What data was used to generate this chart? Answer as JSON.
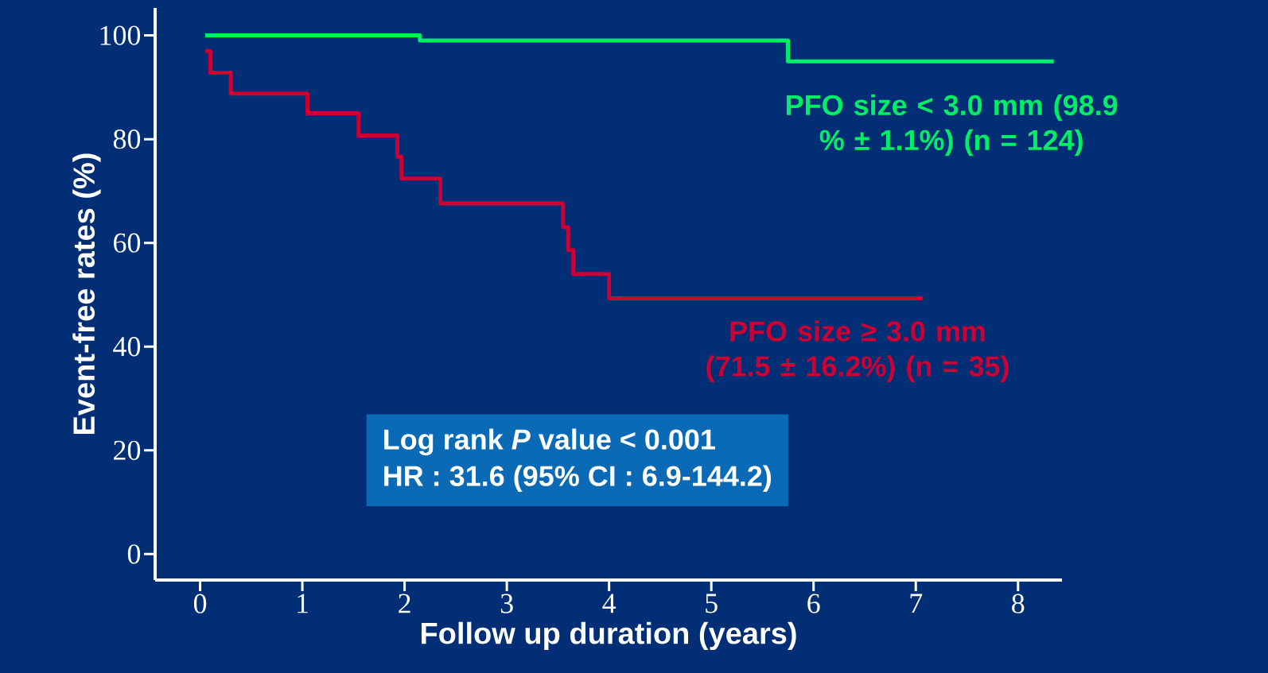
{
  "chart_data": {
    "type": "step",
    "xlabel": "Follow up duration (years)",
    "ylabel": "Event-free rates (%)",
    "xlim": [
      -0.44,
      8.43
    ],
    "ylim": [
      -5,
      105.3
    ],
    "xticks": [
      0,
      1,
      2,
      3,
      4,
      5,
      6,
      7,
      8
    ],
    "yticks": [
      0,
      20,
      40,
      60,
      80,
      100
    ],
    "grid": false,
    "legend": false,
    "series": [
      {
        "name": "PFO size < 3.0 mm (98.9 % ± 1.1%) (n = 124)",
        "color": "#00ee66",
        "x": [
          0.05,
          2.15,
          5.75,
          8.35
        ],
        "values": [
          100,
          99,
          95,
          95
        ]
      },
      {
        "name": "PFO size ≥ 3.0 mm (71.5 ± 16.2%) (n = 35)",
        "color": "#cc0033",
        "x": [
          0.05,
          0.1,
          0.3,
          1.05,
          1.55,
          1.93,
          1.97,
          2.35,
          3.55,
          3.6,
          3.65,
          4.0,
          7.07
        ],
        "values": [
          97,
          92.8,
          88.8,
          85,
          80.7,
          76.6,
          72.4,
          67.6,
          63,
          58.6,
          54,
          49.3,
          49.3
        ]
      }
    ],
    "annotations": [
      "Log rank *P* value < 0.001",
      "HR : 31.6 (95% CI : 6.9-144.2)"
    ]
  }
}
